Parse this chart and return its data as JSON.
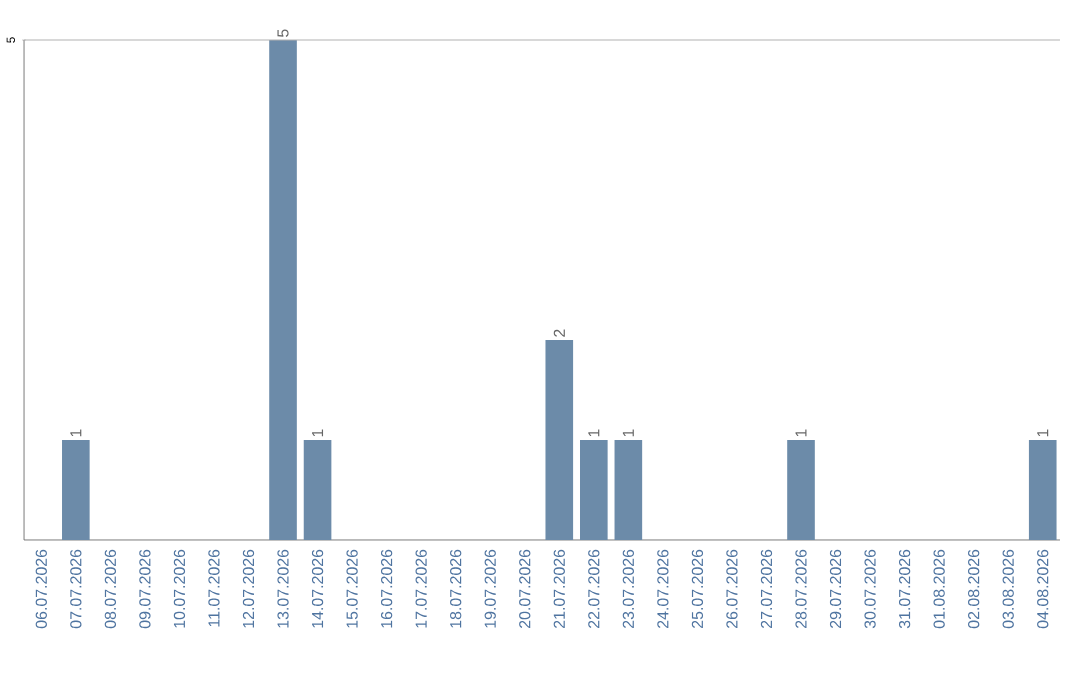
{
  "chart_data": {
    "type": "bar",
    "categories": [
      "06.07.2026",
      "07.07.2026",
      "08.07.2026",
      "09.07.2026",
      "10.07.2026",
      "11.07.2026",
      "12.07.2026",
      "13.07.2026",
      "14.07.2026",
      "15.07.2026",
      "16.07.2026",
      "17.07.2026",
      "18.07.2026",
      "19.07.2026",
      "20.07.2026",
      "21.07.2026",
      "22.07.2026",
      "23.07.2026",
      "24.07.2026",
      "25.07.2026",
      "26.07.2026",
      "27.07.2026",
      "28.07.2026",
      "29.07.2026",
      "30.07.2026",
      "31.07.2026",
      "01.08.2026",
      "02.08.2026",
      "03.08.2026",
      "04.08.2026"
    ],
    "values": [
      0,
      1,
      0,
      0,
      0,
      0,
      0,
      5,
      1,
      0,
      0,
      0,
      0,
      0,
      0,
      2,
      1,
      1,
      0,
      0,
      0,
      0,
      1,
      0,
      0,
      0,
      0,
      0,
      0,
      1
    ],
    "value_labels": [
      null,
      "1",
      null,
      null,
      null,
      null,
      null,
      "5",
      "1",
      null,
      null,
      null,
      null,
      null,
      null,
      "2",
      "1",
      "1",
      null,
      null,
      null,
      null,
      "1",
      null,
      null,
      null,
      null,
      null,
      null,
      "1"
    ],
    "color": "#6c8ba9",
    "ylim": [
      0,
      5
    ],
    "yticks": [
      5
    ]
  }
}
